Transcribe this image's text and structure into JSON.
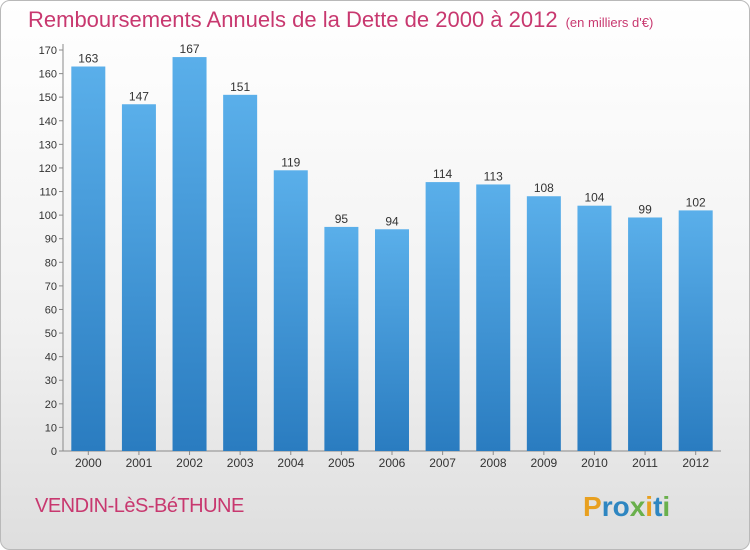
{
  "title": "Remboursements Annuels de la Dette de 2000 à 2012",
  "unit_note": "(en milliers d'€)",
  "commune": "VENDIN-LèS-BéTHUNE",
  "logo": {
    "letters": [
      "P",
      "r",
      "o",
      "x",
      "i",
      "t",
      "i"
    ],
    "colors": [
      "#e8a020",
      "#2e86c1",
      "#2e86c1",
      "#6ab04c",
      "#e8a020",
      "#2e86c1",
      "#6ab04c"
    ]
  },
  "colors": {
    "title": "#c8386f",
    "bar_top": "#5aafea",
    "bar_bottom": "#2a7cc0"
  },
  "chart_data": {
    "type": "bar",
    "categories": [
      "2000",
      "2001",
      "2002",
      "2003",
      "2004",
      "2005",
      "2006",
      "2007",
      "2008",
      "2009",
      "2010",
      "2011",
      "2012"
    ],
    "values": [
      163,
      147,
      167,
      151,
      119,
      95,
      94,
      114,
      113,
      108,
      104,
      99,
      102
    ],
    "title": "Remboursements Annuels de la Dette de 2000 à 2012",
    "ylim": [
      0,
      170
    ],
    "yticks": [
      0,
      10,
      20,
      30,
      40,
      50,
      60,
      70,
      80,
      90,
      100,
      110,
      120,
      130,
      140,
      150,
      160,
      170
    ],
    "grid": false,
    "legend": "none"
  }
}
